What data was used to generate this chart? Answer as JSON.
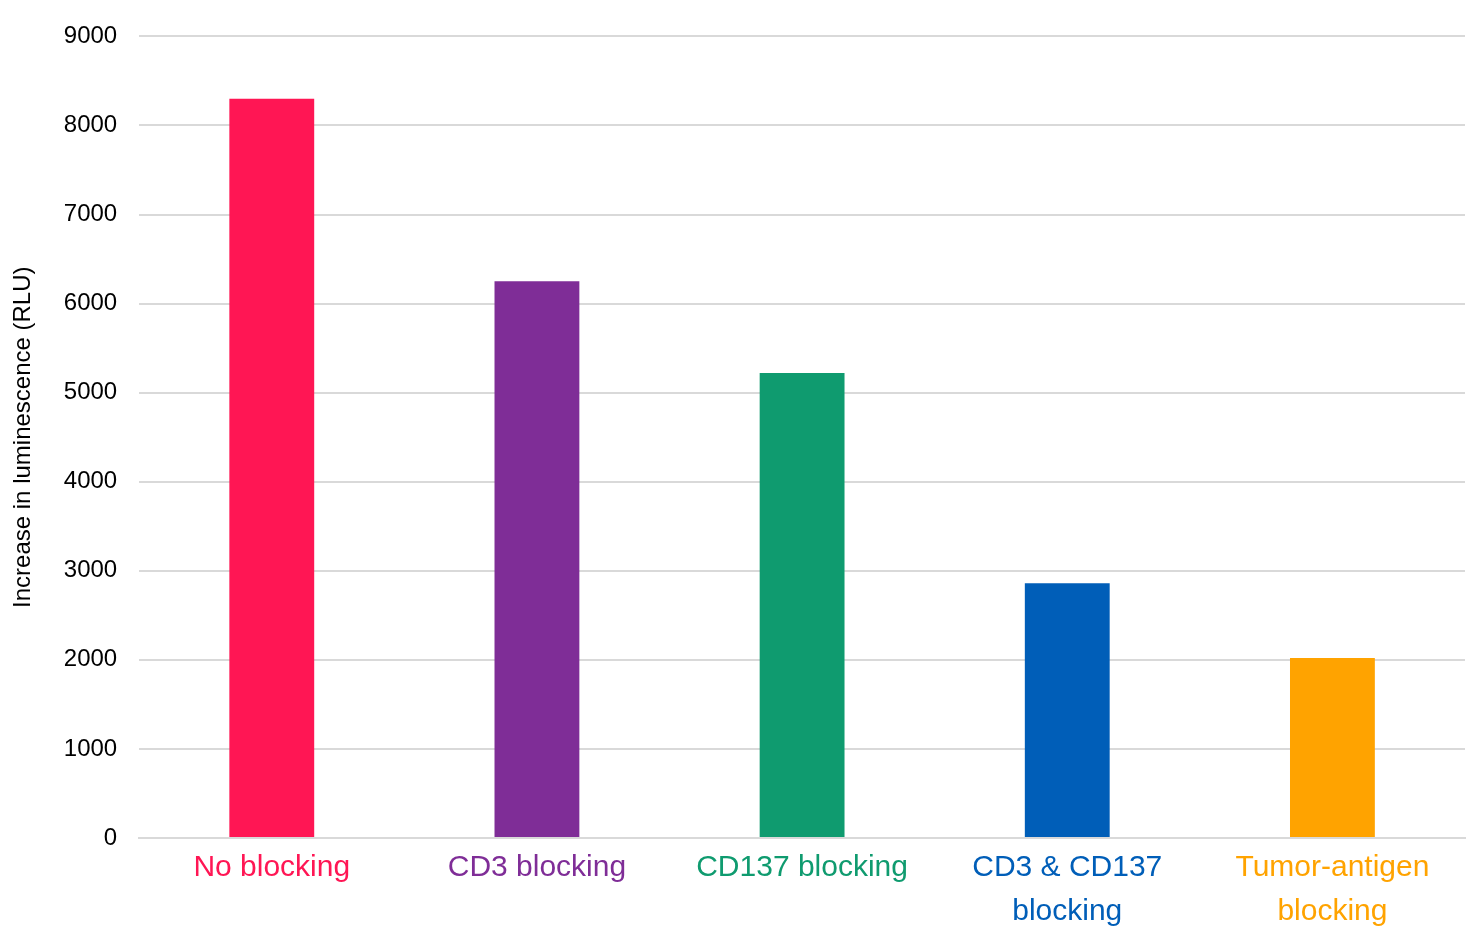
{
  "chart_data": {
    "type": "bar",
    "ylabel": "Increase in luminescence (RLU)",
    "categories": [
      "No blocking",
      "CD3 blocking",
      "CD137 blocking",
      "CD3 & CD137 blocking",
      "Tumor-antigen blocking"
    ],
    "values": [
      8300,
      6250,
      5220,
      2860,
      2020
    ],
    "colors": [
      "#ff1654",
      "#7f2d97",
      "#0f9b6f",
      "#005eb8",
      "#ffa300"
    ],
    "ylim": [
      0,
      9000
    ],
    "yticks": [
      0,
      1000,
      2000,
      3000,
      4000,
      5000,
      6000,
      7000,
      8000,
      9000
    ],
    "grid": "y",
    "legend": false
  }
}
